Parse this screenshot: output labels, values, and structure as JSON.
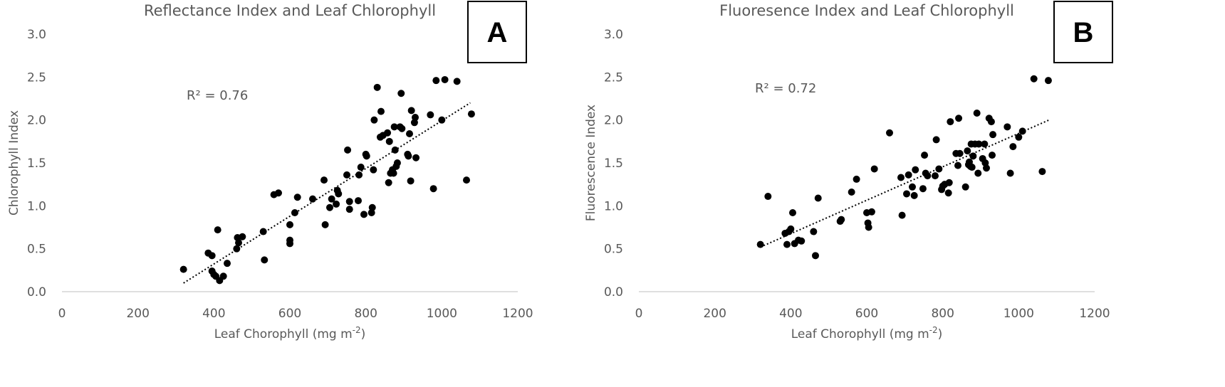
{
  "chart_data": [
    {
      "type": "scatter",
      "panel_label": "A",
      "title": "Reflectance Index and Leaf Chlorophyll",
      "xlabel": "Leaf Chorophyll (mg m",
      "xlabel_sup": "-2",
      "xlabel_suffix": ")",
      "ylabel": "Chlorophyll Index",
      "xlim": [
        0,
        1200
      ],
      "ylim": [
        0,
        3.0
      ],
      "x_ticks": [
        0,
        200,
        400,
        600,
        800,
        1000,
        1200
      ],
      "y_ticks": [
        0.0,
        0.5,
        1.0,
        1.5,
        2.0,
        2.5,
        3.0
      ],
      "y_tick_labels": [
        "0.0",
        "0.5",
        "1.0",
        "1.5",
        "2.0",
        "2.5",
        "3.0"
      ],
      "annotation": "R² = 0.76",
      "trendline": {
        "x1": 320,
        "y1": 0.1,
        "x2": 1075,
        "y2": 2.2
      },
      "points": [
        [
          320,
          0.26
        ],
        [
          385,
          0.45
        ],
        [
          395,
          0.42
        ],
        [
          395,
          0.24
        ],
        [
          400,
          0.2
        ],
        [
          405,
          0.18
        ],
        [
          410,
          0.72
        ],
        [
          415,
          0.13
        ],
        [
          425,
          0.18
        ],
        [
          435,
          0.33
        ],
        [
          460,
          0.5
        ],
        [
          462,
          0.63
        ],
        [
          465,
          0.57
        ],
        [
          475,
          0.64
        ],
        [
          530,
          0.7
        ],
        [
          533,
          0.37
        ],
        [
          558,
          1.13
        ],
        [
          570,
          1.15
        ],
        [
          600,
          0.78
        ],
        [
          600,
          0.6
        ],
        [
          600,
          0.56
        ],
        [
          613,
          0.92
        ],
        [
          620,
          1.1
        ],
        [
          660,
          1.08
        ],
        [
          690,
          1.3
        ],
        [
          693,
          0.78
        ],
        [
          705,
          0.98
        ],
        [
          710,
          1.08
        ],
        [
          722,
          1.02
        ],
        [
          725,
          1.18
        ],
        [
          728,
          1.14
        ],
        [
          750,
          1.36
        ],
        [
          752,
          1.65
        ],
        [
          757,
          1.05
        ],
        [
          757,
          0.96
        ],
        [
          780,
          1.06
        ],
        [
          782,
          1.36
        ],
        [
          787,
          1.45
        ],
        [
          795,
          0.9
        ],
        [
          800,
          1.6
        ],
        [
          802,
          1.58
        ],
        [
          815,
          0.92
        ],
        [
          817,
          0.98
        ],
        [
          820,
          1.42
        ],
        [
          822,
          2.0
        ],
        [
          830,
          2.38
        ],
        [
          838,
          1.8
        ],
        [
          840,
          2.1
        ],
        [
          845,
          1.82
        ],
        [
          857,
          1.85
        ],
        [
          860,
          1.27
        ],
        [
          862,
          1.75
        ],
        [
          865,
          1.38
        ],
        [
          870,
          1.42
        ],
        [
          873,
          1.38
        ],
        [
          875,
          1.92
        ],
        [
          877,
          1.65
        ],
        [
          880,
          1.46
        ],
        [
          883,
          1.5
        ],
        [
          890,
          1.92
        ],
        [
          893,
          2.31
        ],
        [
          895,
          1.9
        ],
        [
          910,
          1.6
        ],
        [
          912,
          1.58
        ],
        [
          915,
          1.84
        ],
        [
          918,
          1.29
        ],
        [
          920,
          2.11
        ],
        [
          928,
          1.97
        ],
        [
          930,
          2.03
        ],
        [
          932,
          1.56
        ],
        [
          970,
          2.06
        ],
        [
          978,
          1.2
        ],
        [
          985,
          2.46
        ],
        [
          1000,
          2.0
        ],
        [
          1008,
          2.47
        ],
        [
          1040,
          2.45
        ],
        [
          1065,
          1.3
        ],
        [
          1078,
          2.07
        ]
      ]
    },
    {
      "type": "scatter",
      "panel_label": "B",
      "title": "Fluoresence Index and Leaf Chlorophyll",
      "xlabel": "Leaf Chorophyll (mg m",
      "xlabel_sup": "-2",
      "xlabel_suffix": ")",
      "ylabel": "Fluorescence Index",
      "xlim": [
        0,
        1200
      ],
      "ylim": [
        0,
        3.0
      ],
      "x_ticks": [
        0,
        200,
        400,
        600,
        800,
        1000,
        1200
      ],
      "y_ticks": [
        0.0,
        0.5,
        1.0,
        1.5,
        2.0,
        2.5,
        3.0
      ],
      "y_tick_labels": [
        "0.0",
        "0.5",
        "1.0",
        "1.5",
        "2.0",
        "2.5",
        "3.0"
      ],
      "annotation": "R² = 0.72",
      "trendline": {
        "x1": 320,
        "y1": 0.52,
        "x2": 1080,
        "y2": 2.0
      },
      "points": [
        [
          320,
          0.55
        ],
        [
          340,
          1.11
        ],
        [
          385,
          0.68
        ],
        [
          390,
          0.55
        ],
        [
          395,
          0.7
        ],
        [
          400,
          0.73
        ],
        [
          405,
          0.92
        ],
        [
          410,
          0.56
        ],
        [
          420,
          0.6
        ],
        [
          428,
          0.59
        ],
        [
          460,
          0.7
        ],
        [
          465,
          0.42
        ],
        [
          472,
          1.09
        ],
        [
          530,
          0.82
        ],
        [
          533,
          0.84
        ],
        [
          560,
          1.16
        ],
        [
          573,
          1.31
        ],
        [
          600,
          0.92
        ],
        [
          603,
          0.8
        ],
        [
          605,
          0.75
        ],
        [
          613,
          0.93
        ],
        [
          620,
          1.43
        ],
        [
          660,
          1.85
        ],
        [
          690,
          1.33
        ],
        [
          693,
          0.89
        ],
        [
          705,
          1.14
        ],
        [
          710,
          1.36
        ],
        [
          720,
          1.22
        ],
        [
          725,
          1.12
        ],
        [
          728,
          1.42
        ],
        [
          748,
          1.2
        ],
        [
          752,
          1.59
        ],
        [
          755,
          1.38
        ],
        [
          760,
          1.35
        ],
        [
          780,
          1.35
        ],
        [
          783,
          1.77
        ],
        [
          790,
          1.43
        ],
        [
          797,
          1.19
        ],
        [
          800,
          1.23
        ],
        [
          805,
          1.25
        ],
        [
          815,
          1.15
        ],
        [
          817,
          1.27
        ],
        [
          820,
          1.98
        ],
        [
          835,
          1.61
        ],
        [
          840,
          1.47
        ],
        [
          842,
          2.02
        ],
        [
          845,
          1.61
        ],
        [
          860,
          1.22
        ],
        [
          865,
          1.64
        ],
        [
          868,
          1.48
        ],
        [
          870,
          1.51
        ],
        [
          873,
          1.46
        ],
        [
          875,
          1.72
        ],
        [
          877,
          1.45
        ],
        [
          880,
          1.58
        ],
        [
          885,
          1.72
        ],
        [
          890,
          2.08
        ],
        [
          893,
          1.38
        ],
        [
          895,
          1.72
        ],
        [
          905,
          1.55
        ],
        [
          910,
          1.72
        ],
        [
          912,
          1.5
        ],
        [
          915,
          1.44
        ],
        [
          922,
          2.02
        ],
        [
          928,
          1.98
        ],
        [
          930,
          1.59
        ],
        [
          932,
          1.83
        ],
        [
          970,
          1.92
        ],
        [
          978,
          1.38
        ],
        [
          985,
          1.69
        ],
        [
          1000,
          1.8
        ],
        [
          1010,
          1.87
        ],
        [
          1040,
          2.48
        ],
        [
          1062,
          1.4
        ],
        [
          1078,
          2.46
        ]
      ]
    }
  ]
}
